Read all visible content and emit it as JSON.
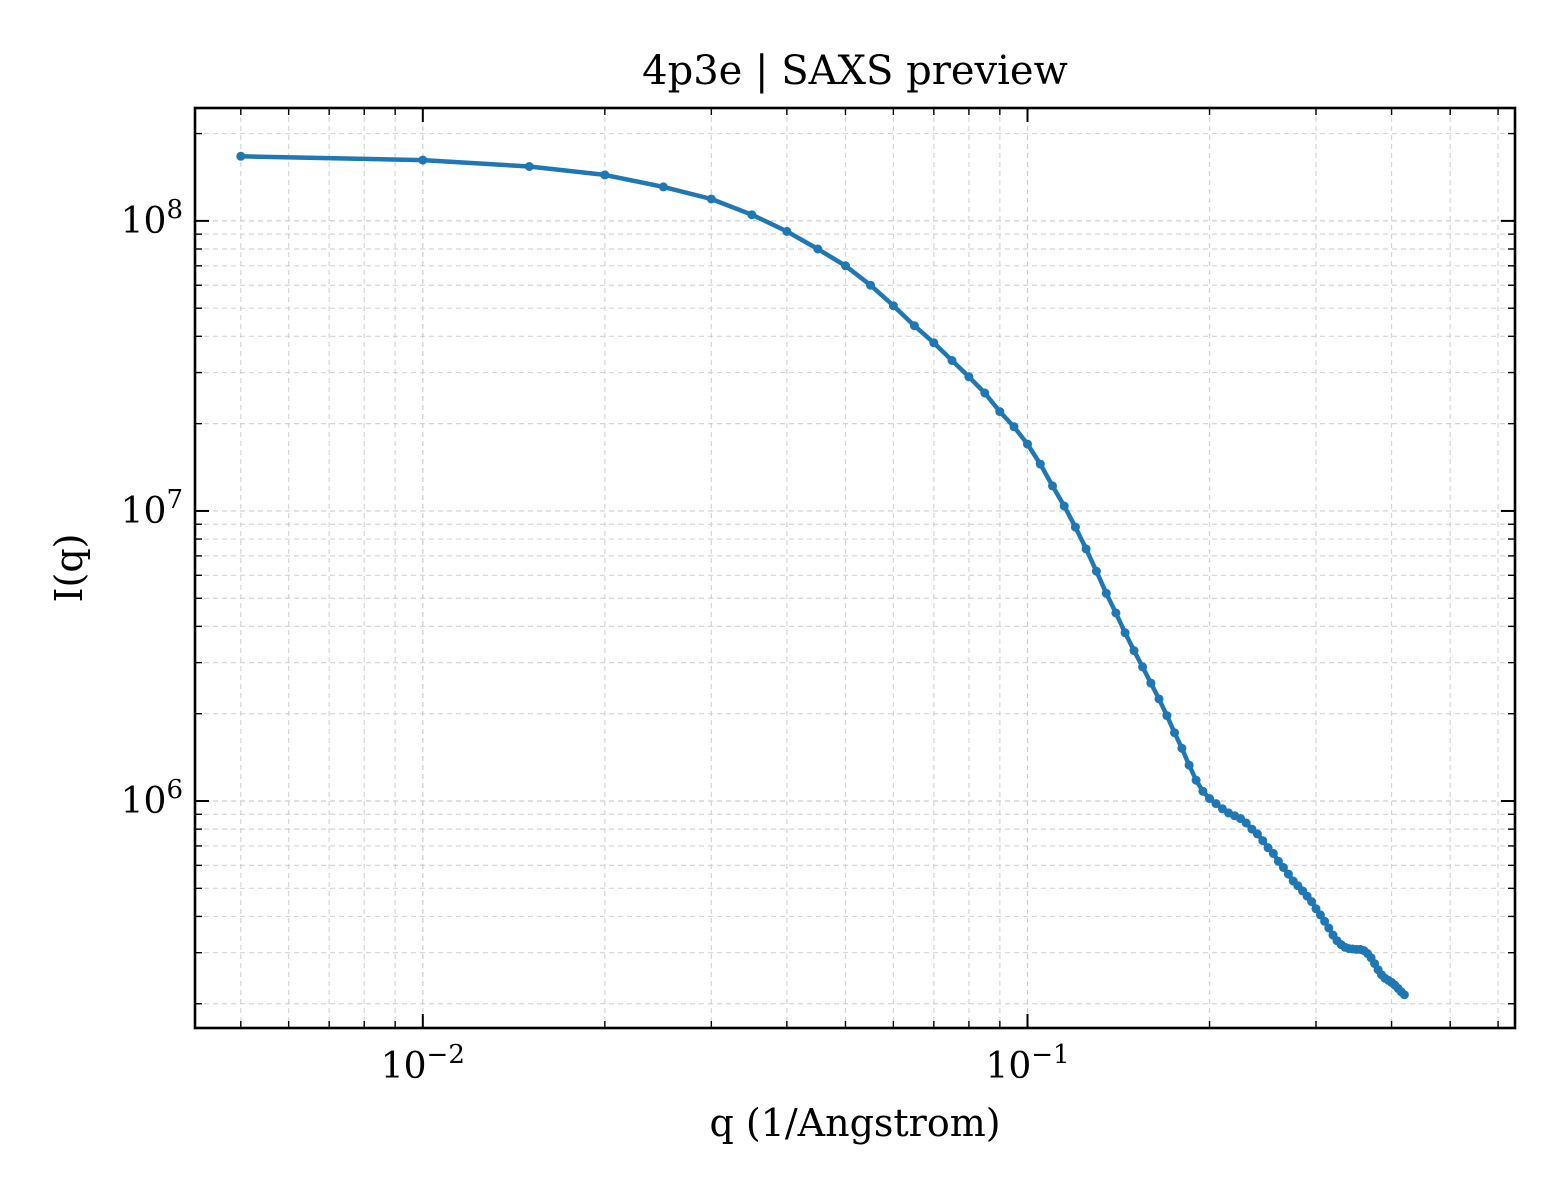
{
  "chart_data": {
    "type": "line",
    "title": "4p3e | SAXS preview",
    "xlabel": "q (1/Angstrom)",
    "ylabel": "I(q)",
    "xscale": "log",
    "yscale": "log",
    "xlim": [
      0.0042,
      0.64
    ],
    "ylim": [
      165000.0,
      245000000.0
    ],
    "grid": true,
    "x_ticks": [
      {
        "value": 0.01,
        "base": "10",
        "exp": "−2"
      },
      {
        "value": 0.1,
        "base": "10",
        "exp": "−1"
      }
    ],
    "y_ticks": [
      {
        "value": 1000000,
        "base": "10",
        "exp": "6"
      },
      {
        "value": 10000000,
        "base": "10",
        "exp": "7"
      },
      {
        "value": 100000000,
        "base": "10",
        "exp": "8"
      }
    ],
    "color": "#1f77b4",
    "series": [
      {
        "points": [
          [
            0.005,
            167000000.0
          ],
          [
            0.01,
            162000000.0
          ],
          [
            0.015,
            154000000.0
          ],
          [
            0.02,
            144000000.0
          ],
          [
            0.025,
            131000000.0
          ],
          [
            0.03,
            119000000.0
          ],
          [
            0.035,
            105000000.0
          ],
          [
            0.04,
            92000000.0
          ],
          [
            0.045,
            80000000.0
          ],
          [
            0.05,
            70000000.0
          ],
          [
            0.055,
            60000000.0
          ],
          [
            0.06,
            51000000.0
          ],
          [
            0.065,
            43500000.0
          ],
          [
            0.07,
            38000000.0
          ],
          [
            0.075,
            33000000.0
          ],
          [
            0.08,
            29000000.0
          ],
          [
            0.085,
            25500000.0
          ],
          [
            0.09,
            22000000.0
          ],
          [
            0.095,
            19500000.0
          ],
          [
            0.1,
            17000000.0
          ],
          [
            0.105,
            14500000.0
          ],
          [
            0.11,
            12200000.0
          ],
          [
            0.115,
            10400000.0
          ],
          [
            0.12,
            8800000.0
          ],
          [
            0.125,
            7400000.0
          ],
          [
            0.13,
            6200000.0
          ],
          [
            0.135,
            5200000.0
          ],
          [
            0.14,
            4450000.0
          ],
          [
            0.145,
            3800000.0
          ],
          [
            0.15,
            3300000.0
          ],
          [
            0.155,
            2900000.0
          ],
          [
            0.16,
            2550000.0
          ],
          [
            0.165,
            2250000.0
          ],
          [
            0.17,
            1970000.0
          ],
          [
            0.175,
            1720000.0
          ],
          [
            0.18,
            1520000.0
          ],
          [
            0.185,
            1330000.0
          ],
          [
            0.19,
            1180000.0
          ],
          [
            0.195,
            1080000.0
          ],
          [
            0.2,
            1020000.0
          ],
          [
            0.205,
            980000.0
          ],
          [
            0.21,
            940000.0
          ],
          [
            0.215,
            910000.0
          ],
          [
            0.22,
            890000.0
          ],
          [
            0.225,
            870000.0
          ],
          [
            0.23,
            840000.0
          ],
          [
            0.235,
            800000.0
          ],
          [
            0.24,
            770000.0
          ],
          [
            0.245,
            730000.0
          ],
          [
            0.25,
            690000.0
          ],
          [
            0.255,
            660000.0
          ],
          [
            0.26,
            620000.0
          ],
          [
            0.265,
            590000.0
          ],
          [
            0.27,
            560000.0
          ],
          [
            0.275,
            530000.0
          ],
          [
            0.28,
            510000.0
          ],
          [
            0.285,
            490000.0
          ],
          [
            0.29,
            470000.0
          ],
          [
            0.295,
            450000.0
          ],
          [
            0.3,
            425000.0
          ],
          [
            0.305,
            405000.0
          ],
          [
            0.31,
            385000.0
          ],
          [
            0.315,
            365000.0
          ],
          [
            0.32,
            345000.0
          ],
          [
            0.325,
            330000.0
          ],
          [
            0.33,
            320000.0
          ],
          [
            0.335,
            313000.0
          ],
          [
            0.34,
            310000.0
          ],
          [
            0.345,
            309000.0
          ],
          [
            0.35,
            308000.0
          ],
          [
            0.355,
            308000.0
          ],
          [
            0.36,
            305000.0
          ],
          [
            0.365,
            298000.0
          ],
          [
            0.37,
            288000.0
          ],
          [
            0.375,
            275000.0
          ],
          [
            0.38,
            262000.0
          ],
          [
            0.385,
            252000.0
          ],
          [
            0.39,
            245000.0
          ],
          [
            0.395,
            241000.0
          ],
          [
            0.4,
            237000.0
          ],
          [
            0.405,
            232000.0
          ],
          [
            0.41,
            226000.0
          ],
          [
            0.415,
            220000.0
          ],
          [
            0.42,
            215000.0
          ]
        ]
      }
    ]
  }
}
